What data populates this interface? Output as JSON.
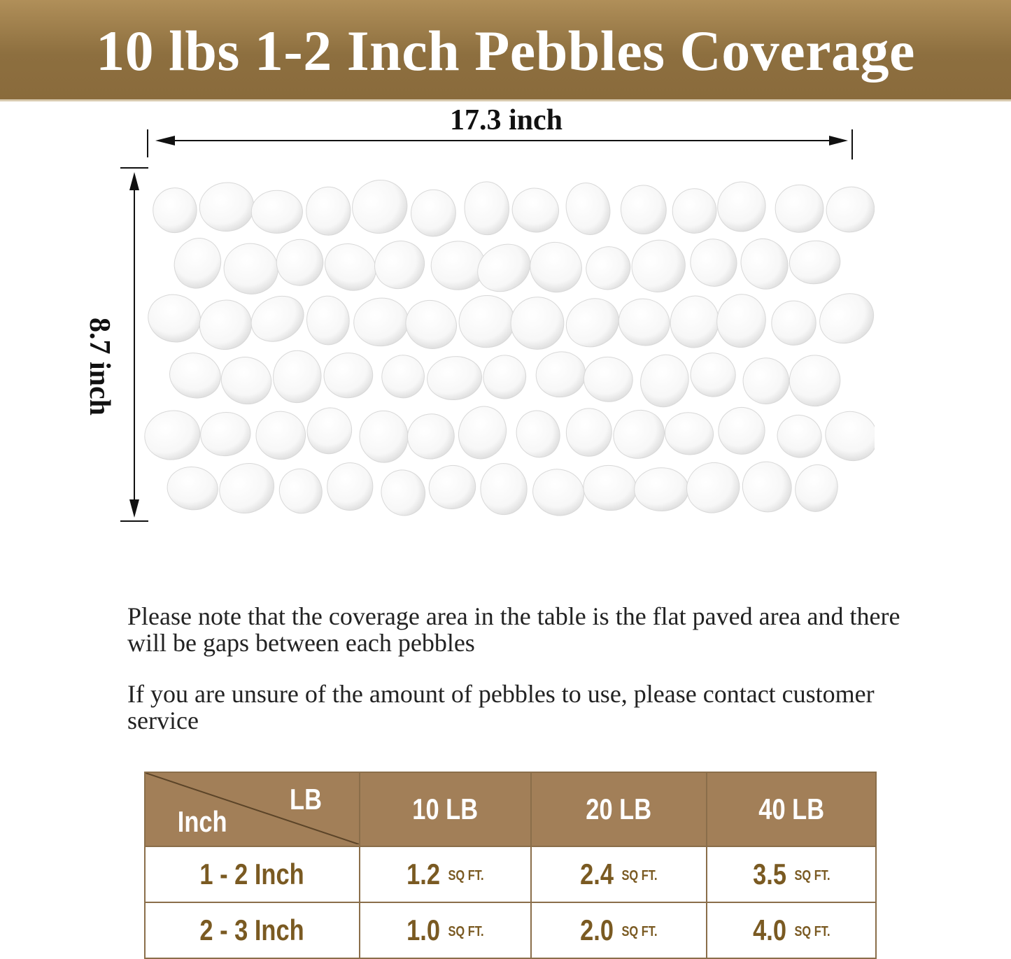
{
  "header": {
    "title": "10 lbs 1-2 Inch Pebbles Coverage"
  },
  "dimensions": {
    "width": "17.3 inch",
    "height": "8.7 inch"
  },
  "notes": [
    "Please note that the coverage area in the table is the flat paved area and there will be gaps between each pebbles",
    "If you are unsure of the amount of pebbles to use, please contact customer service"
  ],
  "table": {
    "corner_top": "LB",
    "corner_bottom": "Inch",
    "columns": [
      "10 LB",
      "20 LB",
      "40 LB"
    ],
    "unit": "SQ FT.",
    "rows": [
      {
        "label": "1 - 2 Inch",
        "values": [
          "1.2",
          "2.4",
          "3.5"
        ]
      },
      {
        "label": "2 - 3 Inch",
        "values": [
          "1.0",
          "2.0",
          "4.0"
        ]
      }
    ]
  },
  "colors": {
    "banner": "#8d6f3f",
    "table_header": "#a27f58",
    "table_text": "#7a5a22"
  }
}
